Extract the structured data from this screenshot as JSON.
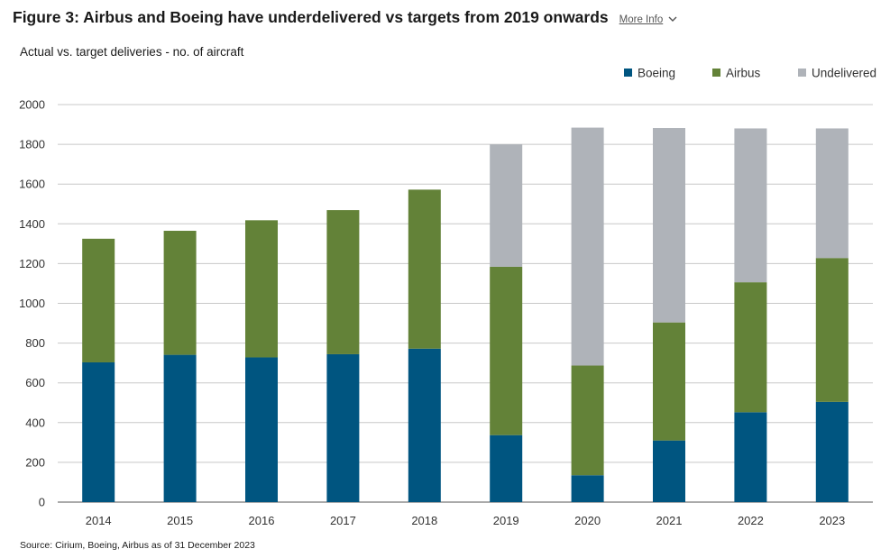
{
  "header": {
    "title": "Figure 3: Airbus and Boeing have underdelivered vs targets from 2019 onwards",
    "more_info": "More Info"
  },
  "footer": {
    "source": "Source: Cirium, Boeing, Airbus as of 31 December 2023"
  },
  "chart_data": {
    "type": "bar",
    "stacked": true,
    "title": "Actual vs. target deliveries - no. of aircraft",
    "xlabel": "",
    "ylabel": "",
    "categories": [
      "2014",
      "2015",
      "2016",
      "2017",
      "2018",
      "2019",
      "2020",
      "2021",
      "2022",
      "2023"
    ],
    "series": [
      {
        "name": "Boeing",
        "color": "#005580",
        "values": [
          703,
          741,
          728,
          744,
          772,
          337,
          135,
          310,
          452,
          504
        ]
      },
      {
        "name": "Airbus",
        "color": "#638238",
        "values": [
          622,
          624,
          690,
          725,
          800,
          847,
          552,
          594,
          654,
          724
        ]
      },
      {
        "name": "Undelivered",
        "color": "#afb3b9",
        "values": [
          0,
          0,
          0,
          0,
          0,
          616,
          1197,
          978,
          774,
          652
        ]
      }
    ],
    "ylim": [
      0,
      2000
    ],
    "yticks": [
      0,
      200,
      400,
      600,
      800,
      1000,
      1200,
      1400,
      1600,
      1800,
      2000
    ],
    "grid": true,
    "legend_position": "top-right"
  }
}
